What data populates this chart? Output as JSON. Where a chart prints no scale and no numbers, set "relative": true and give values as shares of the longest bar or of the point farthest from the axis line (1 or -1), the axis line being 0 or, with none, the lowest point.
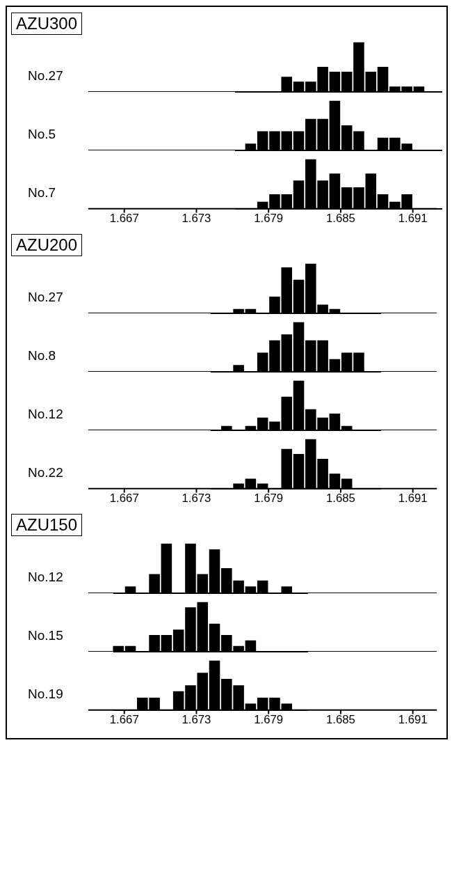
{
  "chart_data": [
    {
      "type": "bar",
      "title": "AZU300",
      "ylabel": "No.27",
      "relative": true,
      "tick_labels": false,
      "xlim": [
        1.664,
        1.693
      ],
      "xticks": [
        1.667,
        1.673,
        1.679,
        1.685,
        1.691
      ],
      "color": "#000000",
      "x": [
        1.6765,
        1.6775,
        1.6785,
        1.6795,
        1.6805,
        1.6815,
        1.6825,
        1.6835,
        1.6845,
        1.6855,
        1.6865,
        1.6875,
        1.6885,
        1.6895,
        1.6905,
        1.6915,
        1.6925
      ],
      "values": [
        0,
        0,
        0,
        0,
        0.3,
        0.2,
        0.2,
        0.5,
        0.4,
        0.4,
        1,
        0.4,
        0.5,
        0.1,
        0.1,
        0.1,
        0
      ]
    },
    {
      "type": "bar",
      "ylabel": "No.5",
      "relative": true,
      "tick_labels": false,
      "xlim": [
        1.664,
        1.693
      ],
      "xticks": [
        1.667,
        1.673,
        1.679,
        1.685,
        1.691
      ],
      "color": "#000000",
      "x": [
        1.6765,
        1.6775,
        1.6785,
        1.6795,
        1.6805,
        1.6815,
        1.6825,
        1.6835,
        1.6845,
        1.6855,
        1.6865,
        1.6875,
        1.6885,
        1.6895,
        1.6905,
        1.6915,
        1.6925
      ],
      "values": [
        0,
        0.13,
        0.38,
        0.38,
        0.38,
        0.38,
        0.63,
        0.63,
        1,
        0.5,
        0.38,
        0,
        0.25,
        0.25,
        0.13,
        0,
        0
      ]
    },
    {
      "type": "bar",
      "ylabel": "No.7",
      "relative": true,
      "tick_labels": "x",
      "xlim": [
        1.664,
        1.693
      ],
      "xticks": [
        1.667,
        1.673,
        1.679,
        1.685,
        1.691
      ],
      "color": "#000000",
      "x": [
        1.6765,
        1.6775,
        1.6785,
        1.6795,
        1.6805,
        1.6815,
        1.6825,
        1.6835,
        1.6845,
        1.6855,
        1.6865,
        1.6875,
        1.6885,
        1.6895,
        1.6905,
        1.6915,
        1.6925
      ],
      "values": [
        0,
        0,
        0.14,
        0.29,
        0.29,
        0.57,
        1,
        0.57,
        0.71,
        0.43,
        0.43,
        0.71,
        0.29,
        0.14,
        0.29,
        0,
        0
      ]
    },
    {
      "type": "bar",
      "title": "AZU200",
      "ylabel": "No.27",
      "relative": true,
      "tick_labels": false,
      "xlim": [
        1.664,
        1.693
      ],
      "xticks": [
        1.667,
        1.673,
        1.679,
        1.685,
        1.691
      ],
      "color": "#000000",
      "x": [
        1.6745,
        1.6755,
        1.6765,
        1.6775,
        1.6785,
        1.6795,
        1.6805,
        1.6815,
        1.6825,
        1.6835,
        1.6845,
        1.6855,
        1.6865,
        1.6875
      ],
      "values": [
        0,
        0,
        0.08,
        0.08,
        0,
        0.33,
        0.92,
        0.67,
        1,
        0.17,
        0.08,
        0,
        0,
        0
      ]
    },
    {
      "type": "bar",
      "ylabel": "No.8",
      "relative": true,
      "tick_labels": false,
      "xlim": [
        1.664,
        1.693
      ],
      "xticks": [
        1.667,
        1.673,
        1.679,
        1.685,
        1.691
      ],
      "color": "#000000",
      "x": [
        1.6745,
        1.6755,
        1.6765,
        1.6775,
        1.6785,
        1.6795,
        1.6805,
        1.6815,
        1.6825,
        1.6835,
        1.6845,
        1.6855,
        1.6865,
        1.6875
      ],
      "values": [
        0,
        0,
        0.13,
        0,
        0.38,
        0.63,
        0.75,
        1,
        0.63,
        0.63,
        0.25,
        0.38,
        0.38,
        0
      ]
    },
    {
      "type": "bar",
      "ylabel": "No.12",
      "relative": true,
      "tick_labels": false,
      "xlim": [
        1.664,
        1.693
      ],
      "xticks": [
        1.667,
        1.673,
        1.679,
        1.685,
        1.691
      ],
      "color": "#000000",
      "x": [
        1.6745,
        1.6755,
        1.6765,
        1.6775,
        1.6785,
        1.6795,
        1.6805,
        1.6815,
        1.6825,
        1.6835,
        1.6845,
        1.6855,
        1.6865,
        1.6875
      ],
      "values": [
        0,
        0.08,
        0,
        0.08,
        0.25,
        0.17,
        0.67,
        1,
        0.42,
        0.25,
        0.33,
        0.08,
        0,
        0
      ]
    },
    {
      "type": "bar",
      "ylabel": "No.22",
      "relative": true,
      "tick_labels": "x",
      "xlim": [
        1.664,
        1.693
      ],
      "xticks": [
        1.667,
        1.673,
        1.679,
        1.685,
        1.691
      ],
      "color": "#000000",
      "x": [
        1.6745,
        1.6755,
        1.6765,
        1.6775,
        1.6785,
        1.6795,
        1.6805,
        1.6815,
        1.6825,
        1.6835,
        1.6845,
        1.6855,
        1.6865,
        1.6875
      ],
      "values": [
        0,
        0,
        0.1,
        0.2,
        0.1,
        0,
        0.8,
        0.7,
        1,
        0.6,
        0.3,
        0.2,
        0,
        0
      ]
    },
    {
      "type": "bar",
      "title": "AZU150",
      "ylabel": "No.12",
      "relative": true,
      "tick_labels": false,
      "xlim": [
        1.664,
        1.693
      ],
      "xticks": [
        1.667,
        1.673,
        1.679,
        1.685,
        1.691
      ],
      "color": "#000000",
      "x": [
        1.6665,
        1.6675,
        1.6685,
        1.6695,
        1.6705,
        1.6715,
        1.6725,
        1.6735,
        1.6745,
        1.6755,
        1.6765,
        1.6775,
        1.6785,
        1.6795,
        1.6805,
        1.6815
      ],
      "values": [
        0,
        0.13,
        0,
        0.38,
        1,
        0,
        1,
        0.38,
        0.88,
        0.5,
        0.25,
        0.13,
        0.25,
        0,
        0.13,
        0
      ]
    },
    {
      "type": "bar",
      "ylabel": "No.15",
      "relative": true,
      "tick_labels": false,
      "xlim": [
        1.664,
        1.693
      ],
      "xticks": [
        1.667,
        1.673,
        1.679,
        1.685,
        1.691
      ],
      "color": "#000000",
      "x": [
        1.6665,
        1.6675,
        1.6685,
        1.6695,
        1.6705,
        1.6715,
        1.6725,
        1.6735,
        1.6745,
        1.6755,
        1.6765,
        1.6775,
        1.6785,
        1.6795,
        1.6805,
        1.6815
      ],
      "values": [
        0.11,
        0.11,
        0,
        0.33,
        0.33,
        0.44,
        0.89,
        1,
        0.56,
        0.33,
        0.11,
        0.22,
        0,
        0,
        0,
        0
      ]
    },
    {
      "type": "bar",
      "ylabel": "No.19",
      "relative": true,
      "tick_labels": "x",
      "xlim": [
        1.664,
        1.693
      ],
      "xticks": [
        1.667,
        1.673,
        1.679,
        1.685,
        1.691
      ],
      "color": "#000000",
      "x": [
        1.6665,
        1.6675,
        1.6685,
        1.6695,
        1.6705,
        1.6715,
        1.6725,
        1.6735,
        1.6745,
        1.6755,
        1.6765,
        1.6775,
        1.6785,
        1.6795,
        1.6805,
        1.6815
      ],
      "values": [
        0,
        0,
        0.25,
        0.25,
        0,
        0.38,
        0.5,
        0.75,
        1,
        0.63,
        0.5,
        0.13,
        0.25,
        0.25,
        0.13,
        0
      ]
    }
  ]
}
